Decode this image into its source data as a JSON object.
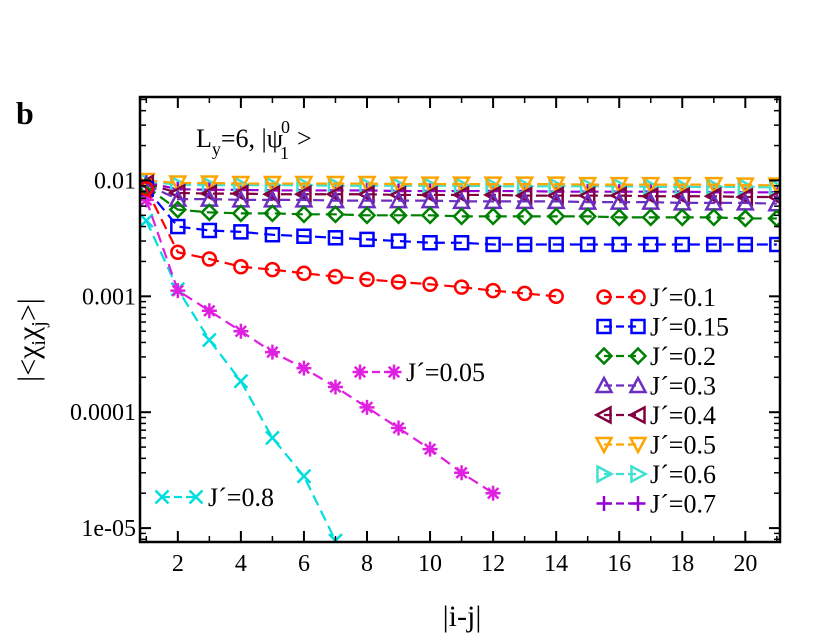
{
  "panel_label": "b",
  "chart_data": {
    "type": "line",
    "scale": "log-y",
    "xlabel": "|i-j|",
    "ylabel": "|<χ_i χ_j>|",
    "title_parts": {
      "L": "L",
      "y_sub": "y",
      "eq": "=6, |ψ",
      "psi_sup": "0",
      "psi_sub": "1",
      "close": ">"
    },
    "xlim": [
      0.8,
      21.1
    ],
    "ylim_log10": [
      -5.12,
      -1.28
    ],
    "x_ticks": [
      2,
      4,
      6,
      8,
      10,
      12,
      14,
      16,
      18,
      20
    ],
    "x_tick_labels": [
      "2",
      "4",
      "6",
      "8",
      "10",
      "12",
      "14",
      "16",
      "18",
      "20"
    ],
    "y_ticks_log10": [
      -2,
      -3,
      -4,
      -5
    ],
    "y_tick_labels": [
      "0.01",
      "0.001",
      "0.0001",
      "1e-05"
    ],
    "grid": false,
    "legend_position": "right",
    "series": [
      {
        "name": "J´=0.1",
        "color": "#ff0000",
        "marker": "circle",
        "x": [
          1,
          2,
          3,
          4,
          5,
          6,
          7,
          8,
          9,
          10,
          11,
          12,
          13,
          14
        ],
        "y": [
          0.0085,
          0.0024,
          0.0021,
          0.0018,
          0.0017,
          0.00158,
          0.00148,
          0.0014,
          0.00133,
          0.00127,
          0.0012,
          0.00112,
          0.00106,
          0.001
        ]
      },
      {
        "name": "J´=0.15",
        "color": "#0000ff",
        "marker": "square",
        "x": [
          1,
          2,
          3,
          4,
          5,
          6,
          7,
          8,
          9,
          10,
          11,
          12,
          13,
          14,
          15,
          16,
          17,
          18,
          19,
          20,
          21
        ],
        "y": [
          0.0085,
          0.004,
          0.0037,
          0.0036,
          0.0034,
          0.0033,
          0.0032,
          0.0031,
          0.003,
          0.0029,
          0.0029,
          0.0028,
          0.0028,
          0.0028,
          0.0028,
          0.0028,
          0.0028,
          0.0028,
          0.0028,
          0.0028,
          0.0028
        ]
      },
      {
        "name": "J´=0.2",
        "color": "#008000",
        "marker": "diamond",
        "x": [
          1,
          2,
          3,
          4,
          5,
          6,
          7,
          8,
          9,
          10,
          11,
          12,
          13,
          14,
          15,
          16,
          17,
          18,
          19,
          20,
          21
        ],
        "y": [
          0.0088,
          0.0056,
          0.0053,
          0.0052,
          0.0052,
          0.0051,
          0.0051,
          0.005,
          0.005,
          0.005,
          0.0049,
          0.0049,
          0.0049,
          0.0049,
          0.0049,
          0.0048,
          0.0048,
          0.0048,
          0.0048,
          0.0047,
          0.0047
        ]
      },
      {
        "name": "J´=0.3",
        "color": "#6b2fbf",
        "marker": "triangle-up",
        "x": [
          1,
          2,
          3,
          4,
          5,
          6,
          7,
          8,
          9,
          10,
          11,
          12,
          13,
          14,
          15,
          16,
          17,
          18,
          19,
          20,
          21
        ],
        "y": [
          0.0092,
          0.0069,
          0.0069,
          0.0068,
          0.0068,
          0.0068,
          0.0067,
          0.0067,
          0.0067,
          0.0067,
          0.0066,
          0.0066,
          0.0066,
          0.0066,
          0.0065,
          0.0065,
          0.0065,
          0.0064,
          0.0064,
          0.0064,
          0.0063
        ]
      },
      {
        "name": "J´=0.4",
        "color": "#800040",
        "marker": "triangle-left",
        "x": [
          1,
          2,
          3,
          4,
          5,
          6,
          7,
          8,
          9,
          10,
          11,
          12,
          13,
          14,
          15,
          16,
          17,
          18,
          19,
          20,
          21
        ],
        "y": [
          0.0094,
          0.0078,
          0.0077,
          0.0077,
          0.0076,
          0.0076,
          0.0076,
          0.0076,
          0.0075,
          0.0075,
          0.0075,
          0.0075,
          0.0074,
          0.0074,
          0.0074,
          0.0074,
          0.0073,
          0.0073,
          0.0073,
          0.0072,
          0.0072
        ]
      },
      {
        "name": "J´=0.5",
        "color": "#ffa500",
        "marker": "triangle-down",
        "x": [
          1,
          2,
          3,
          4,
          5,
          6,
          7,
          8,
          9,
          10,
          11,
          12,
          13,
          14,
          15,
          16,
          17,
          18,
          19,
          20,
          21
        ],
        "y": [
          0.01,
          0.0095,
          0.0095,
          0.0094,
          0.0094,
          0.0094,
          0.0094,
          0.0094,
          0.0093,
          0.0093,
          0.0093,
          0.0093,
          0.0093,
          0.0093,
          0.0092,
          0.0092,
          0.0092,
          0.0092,
          0.0092,
          0.0091,
          0.0091
        ]
      },
      {
        "name": "J´=0.6",
        "color": "#40e0d0",
        "marker": "triangle-right",
        "x": [
          1,
          2,
          3,
          4,
          5,
          6,
          7,
          8,
          9,
          10,
          11,
          12,
          13,
          14,
          15,
          16,
          17,
          18,
          19,
          20,
          21
        ],
        "y": [
          0.0098,
          0.0092,
          0.0091,
          0.0091,
          0.0091,
          0.0091,
          0.009,
          0.009,
          0.009,
          0.009,
          0.009,
          0.0089,
          0.0089,
          0.0089,
          0.0089,
          0.0089,
          0.0088,
          0.0088,
          0.0088,
          0.0088,
          0.0087
        ]
      },
      {
        "name": "J´=0.7",
        "color": "#9400d3",
        "marker": "plus",
        "x": [
          1,
          2,
          3,
          4,
          5,
          6,
          7,
          8,
          9,
          10,
          11,
          12,
          13,
          14,
          15,
          16,
          17,
          18,
          19,
          20,
          21
        ],
        "y": [
          0.0096,
          0.0084,
          0.0083,
          0.0083,
          0.0082,
          0.0082,
          0.0082,
          0.0082,
          0.0081,
          0.0081,
          0.0081,
          0.0081,
          0.0081,
          0.008,
          0.008,
          0.008,
          0.008,
          0.008,
          0.0079,
          0.0079,
          0.0079
        ]
      },
      {
        "name": "J´=0.05",
        "color": "#e020e0",
        "marker": "asterisk",
        "x": [
          1,
          2,
          3,
          4,
          5,
          6,
          7,
          8,
          9,
          10,
          11,
          12
        ],
        "y": [
          0.0068,
          0.00112,
          0.00075,
          0.0005,
          0.00033,
          0.00024,
          0.000165,
          0.00011,
          7.3e-05,
          4.8e-05,
          3e-05,
          2e-05
        ]
      },
      {
        "name": "J´=0.8",
        "color": "#00dddd",
        "marker": "x",
        "x": [
          1,
          2,
          3,
          4,
          5,
          6,
          7
        ],
        "y": [
          0.0045,
          0.00115,
          0.00042,
          0.000185,
          6e-05,
          2.8e-05,
          7.8e-06
        ]
      }
    ],
    "legend": [
      "J´=0.1",
      "J´=0.15",
      "J´=0.2",
      "J´=0.3",
      "J´=0.4",
      "J´=0.5",
      "J´=0.6",
      "J´=0.7"
    ],
    "inline_labels": [
      {
        "series": "J´=0.05",
        "text": "J´=0.05"
      },
      {
        "series": "J´=0.8",
        "text": "J´=0.8"
      }
    ]
  }
}
